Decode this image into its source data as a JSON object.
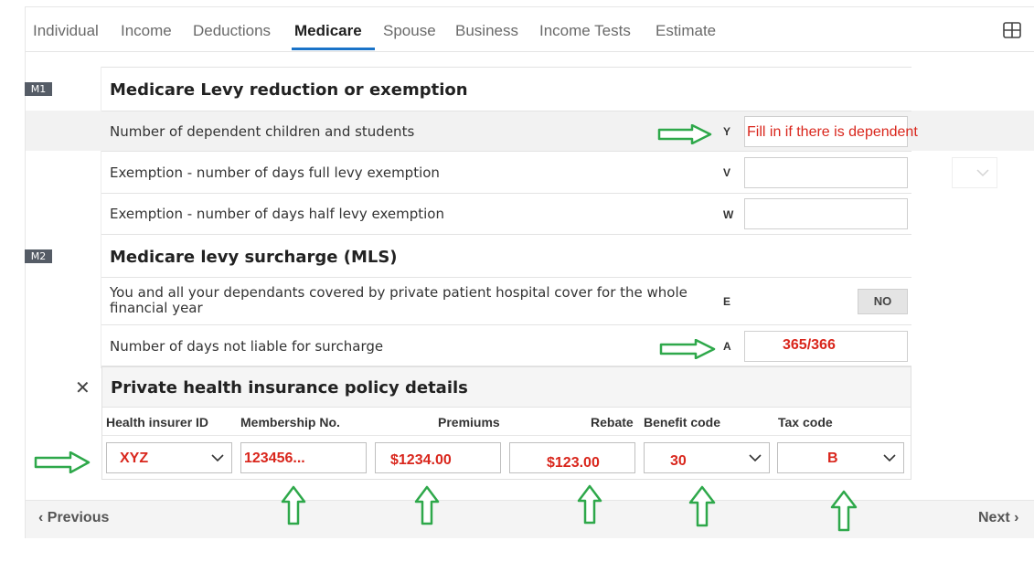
{
  "tabs": [
    {
      "label": "Individual"
    },
    {
      "label": "Income"
    },
    {
      "label": "Deductions"
    },
    {
      "label": "Medicare"
    },
    {
      "label": "Spouse"
    },
    {
      "label": "Business"
    },
    {
      "label": "Income Tests"
    },
    {
      "label": "Estimate"
    }
  ],
  "active_tab": "Medicare",
  "sections": {
    "m1": {
      "badge": "M1",
      "title": "Medicare Levy reduction or exemption",
      "rows": [
        {
          "label": "Number of dependent children and students",
          "code": "Y",
          "value": "Fill in if there is dependent"
        },
        {
          "label": "Exemption - number of days full levy exemption",
          "code": "V",
          "value": ""
        },
        {
          "label": "Exemption - number of days half levy exemption",
          "code": "W",
          "value": ""
        }
      ]
    },
    "m2": {
      "badge": "M2",
      "title": "Medicare levy surcharge (MLS)",
      "rows": [
        {
          "label": "You and all your dependants covered by private patient hospital cover for the whole financial year",
          "code": "E",
          "value": "NO"
        },
        {
          "label": "Number of days not liable for surcharge",
          "code": "A",
          "value": "365/366"
        }
      ]
    }
  },
  "private_health": {
    "title": "Private health insurance policy details",
    "columns": [
      "Health insurer ID",
      "Membership No.",
      "Premiums",
      "Rebate",
      "Benefit code",
      "Tax code"
    ],
    "row": {
      "health_insurer_id": "XYZ",
      "membership_no": "123456...",
      "premiums": "$1234.00",
      "rebate": "$123.00",
      "benefit_code": "30",
      "tax_code": "B"
    }
  },
  "footer": {
    "previous_label": "Previous",
    "next_label": "Next"
  },
  "colors": {
    "accent": "#1a73c8",
    "annotation_green": "#2ea84a",
    "annotation_red": "#d9261c",
    "badge": "#555c66"
  }
}
